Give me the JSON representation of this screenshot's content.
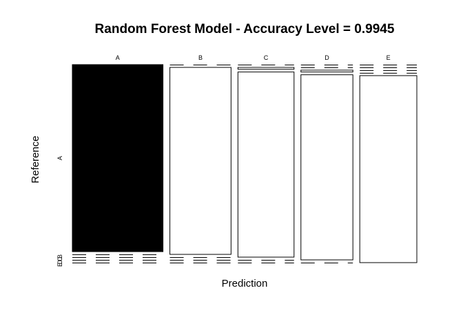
{
  "chart_data": {
    "type": "mosaic",
    "title": "Random Forest Model - Accuracy Level = 0.9945",
    "xlabel": "Prediction",
    "ylabel": "Reference",
    "categories": [
      "A",
      "B",
      "C",
      "D",
      "E"
    ],
    "reference_levels": [
      "A",
      "B",
      "C",
      "D",
      "E"
    ],
    "y_tick_labels": [
      "A",
      "B",
      "C",
      "D",
      "E"
    ],
    "column_shares": [
      0.286,
      0.193,
      0.177,
      0.164,
      0.18
    ],
    "cells": [
      {
        "prediction": "A",
        "reference": "A",
        "share": 1.0
      },
      {
        "prediction": "A",
        "reference": "B",
        "share": 0.0
      },
      {
        "prediction": "A",
        "reference": "C",
        "share": 0.0
      },
      {
        "prediction": "A",
        "reference": "D",
        "share": 0.0
      },
      {
        "prediction": "A",
        "reference": "E",
        "share": 0.0
      },
      {
        "prediction": "B",
        "reference": "A",
        "share": 0.0
      },
      {
        "prediction": "B",
        "reference": "B",
        "share": 1.0
      },
      {
        "prediction": "B",
        "reference": "C",
        "share": 0.0
      },
      {
        "prediction": "B",
        "reference": "D",
        "share": 0.0
      },
      {
        "prediction": "B",
        "reference": "E",
        "share": 0.0
      },
      {
        "prediction": "C",
        "reference": "A",
        "share": 0.0
      },
      {
        "prediction": "C",
        "reference": "B",
        "share": 0.01
      },
      {
        "prediction": "C",
        "reference": "C",
        "share": 0.99
      },
      {
        "prediction": "C",
        "reference": "D",
        "share": 0.0
      },
      {
        "prediction": "C",
        "reference": "E",
        "share": 0.0
      },
      {
        "prediction": "D",
        "reference": "A",
        "share": 0.0
      },
      {
        "prediction": "D",
        "reference": "B",
        "share": 0.0
      },
      {
        "prediction": "D",
        "reference": "C",
        "share": 0.01
      },
      {
        "prediction": "D",
        "reference": "D",
        "share": 0.99
      },
      {
        "prediction": "D",
        "reference": "E",
        "share": 0.0
      },
      {
        "prediction": "E",
        "reference": "A",
        "share": 0.0
      },
      {
        "prediction": "E",
        "reference": "B",
        "share": 0.0
      },
      {
        "prediction": "E",
        "reference": "C",
        "share": 0.0
      },
      {
        "prediction": "E",
        "reference": "D",
        "share": 0.0
      },
      {
        "prediction": "E",
        "reference": "E",
        "share": 1.0
      }
    ],
    "highlight_color": "#000000",
    "fill_color": "#ffffff",
    "stroke_color": "#000000"
  }
}
